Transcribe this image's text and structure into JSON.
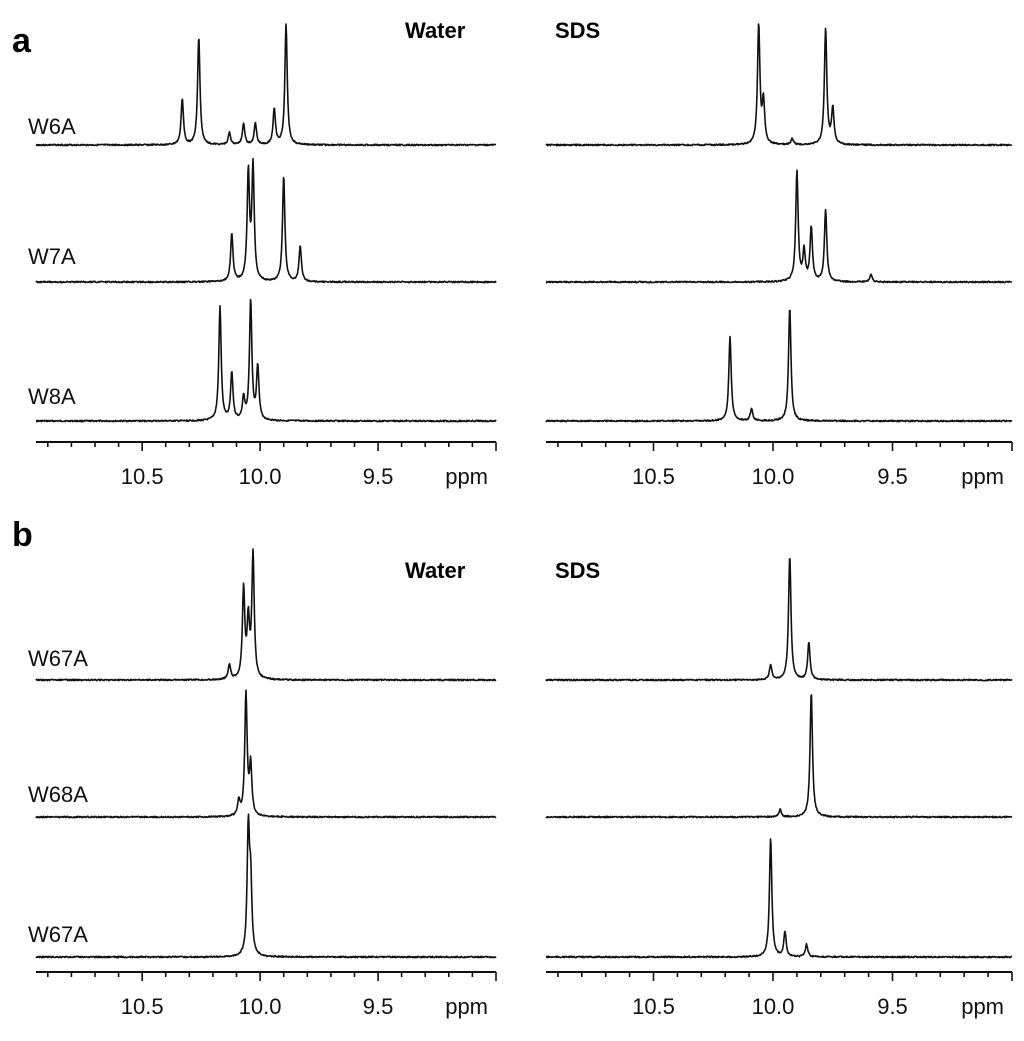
{
  "chart_data": [
    {
      "type": "line",
      "panel": "a",
      "condition": "Water",
      "x_unit": "ppm",
      "x_range": [
        10.95,
        9.0
      ],
      "x_reversed": true,
      "x_ticks": [
        "10.5",
        "10.0",
        "9.5"
      ],
      "series": [
        {
          "name": "W6A",
          "peaks": [
            {
              "ppm": 10.33,
              "h": 0.38
            },
            {
              "ppm": 10.26,
              "h": 0.9
            },
            {
              "ppm": 10.13,
              "h": 0.1
            },
            {
              "ppm": 10.07,
              "h": 0.18
            },
            {
              "ppm": 10.02,
              "h": 0.18
            },
            {
              "ppm": 9.94,
              "h": 0.3
            },
            {
              "ppm": 9.89,
              "h": 1.0
            }
          ]
        },
        {
          "name": "W7A",
          "peaks": [
            {
              "ppm": 10.12,
              "h": 0.4
            },
            {
              "ppm": 10.05,
              "h": 0.9
            },
            {
              "ppm": 10.03,
              "h": 0.95
            },
            {
              "ppm": 9.9,
              "h": 0.88
            },
            {
              "ppm": 9.83,
              "h": 0.3
            }
          ]
        },
        {
          "name": "W8A",
          "peaks": [
            {
              "ppm": 10.17,
              "h": 0.95
            },
            {
              "ppm": 10.12,
              "h": 0.4
            },
            {
              "ppm": 10.07,
              "h": 0.18
            },
            {
              "ppm": 10.04,
              "h": 1.0
            },
            {
              "ppm": 10.01,
              "h": 0.45
            }
          ]
        }
      ]
    },
    {
      "type": "line",
      "panel": "a",
      "condition": "SDS",
      "x_unit": "ppm",
      "x_range": [
        10.95,
        9.0
      ],
      "x_reversed": true,
      "x_ticks": [
        "10.5",
        "10.0",
        "9.5"
      ],
      "series": [
        {
          "name": "W6A",
          "peaks": [
            {
              "ppm": 10.06,
              "h": 1.0
            },
            {
              "ppm": 10.04,
              "h": 0.35
            },
            {
              "ppm": 9.92,
              "h": 0.05
            },
            {
              "ppm": 9.78,
              "h": 0.97
            },
            {
              "ppm": 9.75,
              "h": 0.3
            }
          ]
        },
        {
          "name": "W7A",
          "peaks": [
            {
              "ppm": 9.9,
              "h": 0.92
            },
            {
              "ppm": 9.87,
              "h": 0.25
            },
            {
              "ppm": 9.84,
              "h": 0.45
            },
            {
              "ppm": 9.78,
              "h": 0.6
            },
            {
              "ppm": 9.59,
              "h": 0.06
            }
          ]
        },
        {
          "name": "W8A",
          "peaks": [
            {
              "ppm": 10.18,
              "h": 0.7
            },
            {
              "ppm": 10.09,
              "h": 0.1
            },
            {
              "ppm": 9.93,
              "h": 0.95
            }
          ]
        }
      ]
    },
    {
      "type": "line",
      "panel": "b",
      "condition": "Water",
      "x_unit": "ppm",
      "x_range": [
        10.95,
        9.0
      ],
      "x_reversed": true,
      "x_ticks": [
        "10.5",
        "10.0",
        "9.5"
      ],
      "series": [
        {
          "name": "W67A",
          "peaks": [
            {
              "ppm": 10.13,
              "h": 0.12
            },
            {
              "ppm": 10.07,
              "h": 0.72
            },
            {
              "ppm": 10.05,
              "h": 0.45
            },
            {
              "ppm": 10.03,
              "h": 1.0
            }
          ]
        },
        {
          "name": "W68A",
          "peaks": [
            {
              "ppm": 10.09,
              "h": 0.12
            },
            {
              "ppm": 10.06,
              "h": 0.98
            },
            {
              "ppm": 10.04,
              "h": 0.4
            }
          ]
        },
        {
          "name": "W67A",
          "peaks": [
            {
              "ppm": 10.05,
              "h": 1.0
            },
            {
              "ppm": 10.04,
              "h": 0.55
            }
          ]
        }
      ]
    },
    {
      "type": "line",
      "panel": "b",
      "condition": "SDS",
      "x_unit": "ppm",
      "x_range": [
        10.95,
        9.0
      ],
      "x_reversed": true,
      "x_ticks": [
        "10.5",
        "10.0",
        "9.5"
      ],
      "series": [
        {
          "name": "W67A",
          "peaks": [
            {
              "ppm": 10.01,
              "h": 0.12
            },
            {
              "ppm": 9.93,
              "h": 1.0
            },
            {
              "ppm": 9.85,
              "h": 0.3
            }
          ]
        },
        {
          "name": "W68A",
          "peaks": [
            {
              "ppm": 9.97,
              "h": 0.06
            },
            {
              "ppm": 9.84,
              "h": 1.0
            }
          ]
        },
        {
          "name": "W67A",
          "peaks": [
            {
              "ppm": 10.01,
              "h": 0.95
            },
            {
              "ppm": 9.95,
              "h": 0.2
            },
            {
              "ppm": 9.86,
              "h": 0.1
            }
          ]
        }
      ]
    }
  ],
  "colors": {
    "trace": "#111111",
    "background": "#ffffff"
  }
}
